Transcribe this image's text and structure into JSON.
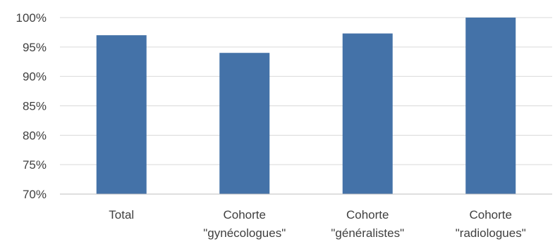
{
  "chart_data": {
    "type": "bar",
    "categories": [
      [
        "Total"
      ],
      [
        "Cohorte",
        "\"gynécologues\""
      ],
      [
        "Cohorte",
        "\"généralistes\""
      ],
      [
        "Cohorte",
        "\"radiologues\""
      ]
    ],
    "values": [
      0.97,
      0.94,
      0.973,
      1.0
    ],
    "ylim": [
      0.7,
      1.0
    ],
    "yticks": [
      0.7,
      0.75,
      0.8,
      0.85,
      0.9,
      0.95,
      1.0
    ],
    "ytick_labels": [
      "70%",
      "75%",
      "80%",
      "85%",
      "90%",
      "95%",
      "100%"
    ],
    "grid": true,
    "legend": "none",
    "colors": {
      "bar": "#4472a8",
      "grid": "#d9d9d9",
      "axis": "#bfbfbf",
      "text": "#404040"
    }
  }
}
